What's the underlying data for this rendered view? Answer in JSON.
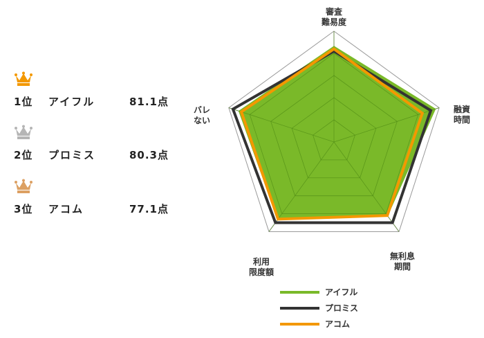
{
  "ranking": [
    {
      "rank": "1位",
      "name": "アイフル",
      "score": "81.1点",
      "crown_color": "#f39800"
    },
    {
      "rank": "2位",
      "name": "プロミス",
      "score": "80.3点",
      "crown_color": "#b5b5b5"
    },
    {
      "rank": "3位",
      "name": "アコム",
      "score": "77.1点",
      "crown_color": "#dca062"
    }
  ],
  "chart_data": {
    "type": "radar",
    "axes": [
      [
        "審査",
        "難易度"
      ],
      [
        "融資",
        "時間"
      ],
      [
        "無利息",
        "期間"
      ],
      [
        "利用",
        "限度額"
      ],
      [
        "バレ",
        "ない"
      ]
    ],
    "rlim": [
      0,
      5
    ],
    "grid_levels": 5,
    "grid": true,
    "legend_position": "bottom",
    "series": [
      {
        "name": "アイフル",
        "color": "#7ab929",
        "fill": true,
        "values": [
          4.3,
          4.8,
          4.1,
          4.3,
          4.5
        ]
      },
      {
        "name": "プロミス",
        "color": "#333333",
        "fill": false,
        "values": [
          4.1,
          4.6,
          4.5,
          4.5,
          4.8
        ]
      },
      {
        "name": "アコム",
        "color": "#f39800",
        "fill": false,
        "values": [
          4.2,
          4.2,
          4.1,
          4.3,
          4.4
        ]
      }
    ]
  }
}
